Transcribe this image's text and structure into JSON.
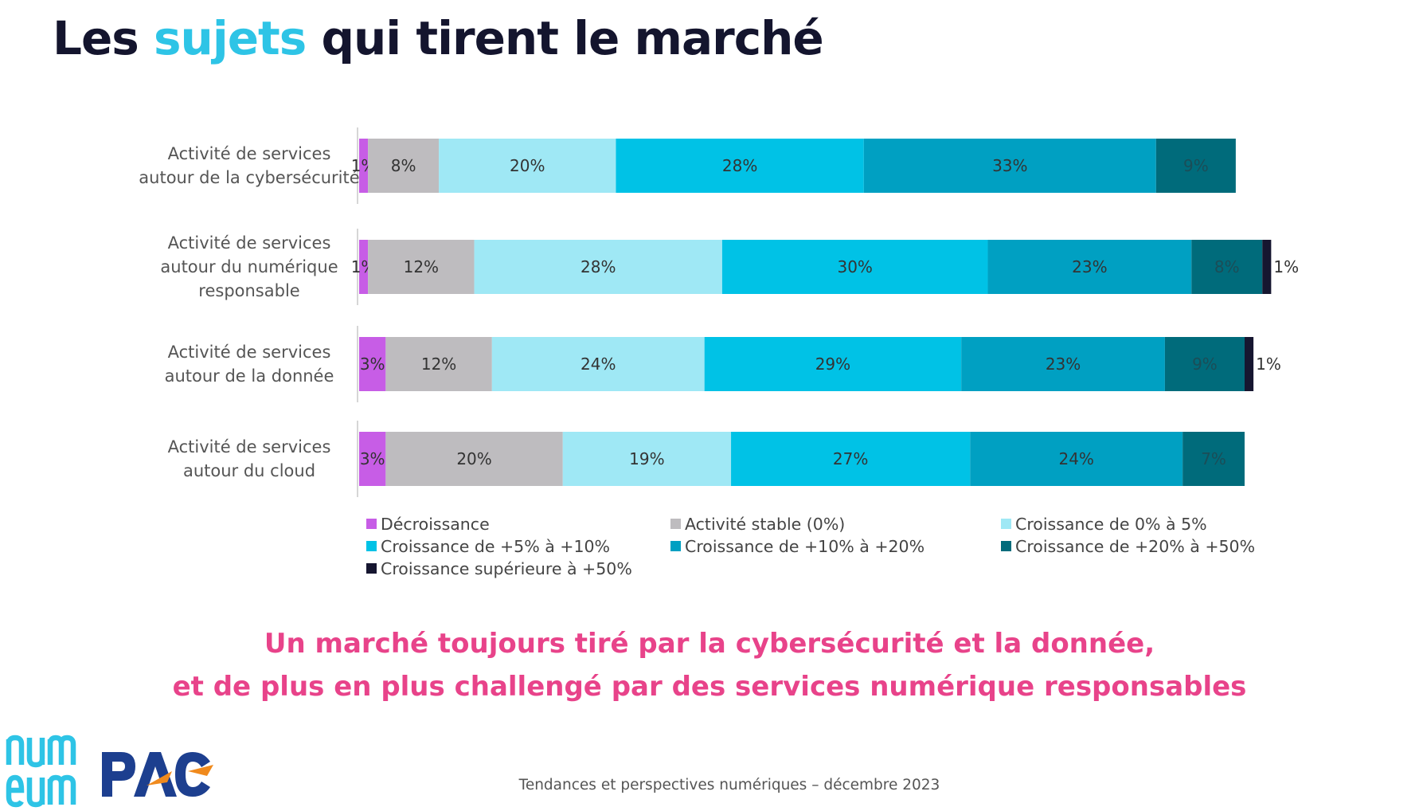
{
  "slide": {
    "title_parts": [
      "Les ",
      "sujets",
      " qui tirent le marché"
    ],
    "conclusion_lines": [
      "Un marché toujours tiré par la cybersécurité et la donnée,",
      "et de plus en plus challengé par des services numérique responsables"
    ],
    "footer": "Tendances et perspectives numériques – décembre 2023",
    "logos": [
      {
        "name": "numeum-logo",
        "text": "num eum",
        "color": "#2ec4e6"
      },
      {
        "name": "pac-logo",
        "text": "PAC",
        "colors": [
          "#1d3f8f",
          "#f08a1d"
        ]
      }
    ]
  },
  "chart_data": {
    "type": "bar",
    "orientation": "horizontal",
    "stacked": true,
    "stack_total": 100,
    "categories": [
      [
        "Activité de services",
        "autour de la cybersécurité"
      ],
      [
        "Activité de services",
        "autour du numérique",
        "responsable"
      ],
      [
        "Activité de services",
        "autour de la donnée"
      ],
      [
        "Activité de services",
        "autour du cloud"
      ]
    ],
    "series": [
      {
        "name": "Décroissance",
        "color": "#c75de6",
        "values": [
          1,
          1,
          3,
          3
        ]
      },
      {
        "name": "Activité stable (0%)",
        "color": "#bebcbf",
        "values": [
          8,
          12,
          12,
          20
        ]
      },
      {
        "name": "Croissance de 0% à 5%",
        "color": "#9fe8f5",
        "values": [
          20,
          28,
          24,
          19
        ]
      },
      {
        "name": "Croissance de +5% à +10%",
        "color": "#00c2e6",
        "values": [
          28,
          30,
          29,
          27
        ]
      },
      {
        "name": "Croissance de +10% à +20%",
        "color": "#00a0c2",
        "values": [
          33,
          23,
          23,
          24
        ]
      },
      {
        "name": "Croissance de +20% à +50%",
        "color": "#006b7b",
        "values": [
          9,
          8,
          9,
          7
        ]
      },
      {
        "name": "Croissance supérieure à +50%",
        "color": "#161630",
        "values": [
          0,
          1,
          1,
          0
        ]
      }
    ],
    "data_labels": [
      [
        "1%",
        "8%",
        "20%",
        "28%",
        "33%",
        "9%",
        ""
      ],
      [
        "1%",
        "12%",
        "28%",
        "30%",
        "23%",
        "8%",
        "1%"
      ],
      [
        "3%",
        "12%",
        "24%",
        "29%",
        "23%",
        "9%",
        "1%"
      ],
      [
        "3%",
        "20%",
        "19%",
        "27%",
        "24%",
        "7%",
        ""
      ]
    ],
    "legend": {
      "position": "bottom",
      "columns": 3
    },
    "grid": false
  }
}
